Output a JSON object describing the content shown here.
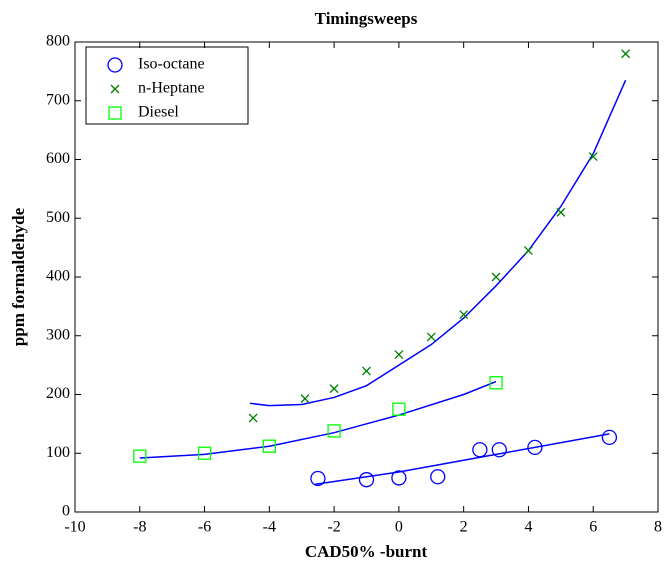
{
  "chart_data": {
    "type": "scatter",
    "title": "Timingsweeps",
    "xlabel": "CAD50% -burnt",
    "ylabel": "ppm formaldehyde",
    "xlim": [
      -10,
      8
    ],
    "xticks": [
      -10,
      -8,
      -6,
      -4,
      -2,
      0,
      2,
      4,
      6,
      8
    ],
    "ylim": [
      0,
      800
    ],
    "yticks": [
      0,
      100,
      200,
      300,
      400,
      500,
      600,
      700,
      800
    ],
    "legend": "upper-left",
    "series": [
      {
        "name": "Iso-octane",
        "color": "#0000ff",
        "marker": "circle",
        "x": [
          -2.5,
          -1,
          0,
          1.2,
          2.5,
          3.1,
          4.2,
          6.5
        ],
        "values": [
          57,
          55,
          58,
          60,
          106,
          106,
          110,
          127
        ]
      },
      {
        "name": "n-Heptane",
        "color": "#008000",
        "marker": "x",
        "x": [
          -4.5,
          -2.9,
          -2,
          -1,
          0,
          1,
          2,
          3,
          4,
          5,
          6,
          7
        ],
        "values": [
          160,
          193,
          210,
          240,
          268,
          298,
          336,
          400,
          445,
          510,
          605,
          780
        ]
      },
      {
        "name": "Diesel",
        "color": "#00ff00",
        "marker": "square",
        "x": [
          -8,
          -6,
          -4,
          -2,
          0,
          3
        ],
        "values": [
          95,
          100,
          112,
          138,
          175,
          220
        ]
      }
    ],
    "fit_lines": [
      {
        "color": "#0000ff",
        "x": [
          -2.6,
          0,
          3,
          6.5
        ],
        "values": [
          47,
          68,
          98,
          133
        ]
      },
      {
        "color": "#0000ff",
        "x": [
          -4.6,
          -4,
          -3,
          -2,
          -1,
          0,
          1,
          2,
          3,
          4,
          5,
          6,
          7
        ],
        "values": [
          185,
          181,
          183,
          195,
          215,
          250,
          285,
          330,
          385,
          445,
          520,
          610,
          735
        ]
      },
      {
        "color": "#0000ff",
        "x": [
          -8,
          -6,
          -4,
          -2,
          0,
          2,
          3
        ],
        "values": [
          92,
          98,
          112,
          135,
          165,
          200,
          222
        ]
      }
    ]
  }
}
